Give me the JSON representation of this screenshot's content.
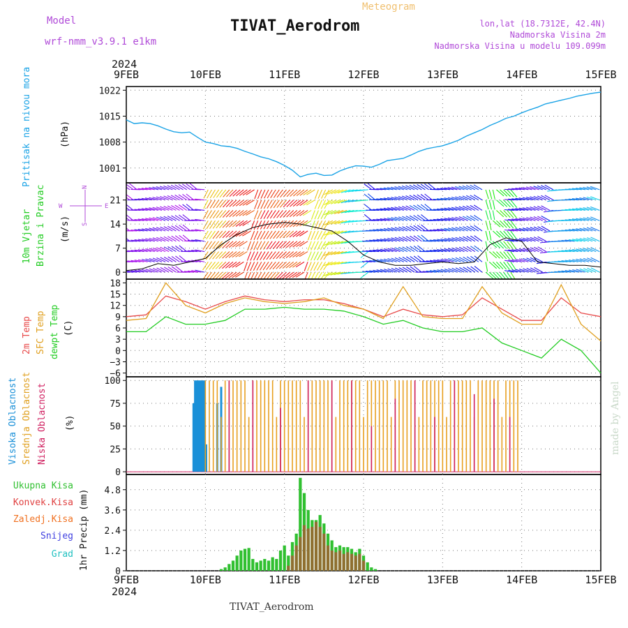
{
  "header": {
    "model_label": "Model",
    "model_name": "wrf-nmm_v3.9.1 e1km",
    "title": "TIVAT_Aerodrom",
    "meteogram_label": "Meteogram",
    "lonlat": "lon,lat (18.7312E, 42.4N)",
    "elevation": "Nadmorska Visina 2m",
    "model_elevation": "Nadmorska Visina u modelu 109.099m",
    "bottom_title": "TIVAT_Aerodrom",
    "watermark": "made by Angel"
  },
  "colors": {
    "pressure": "#1aa3e6",
    "temp2m": "#e84a4a",
    "sfc_temp": "#e0a020",
    "dewpt": "#22cc22",
    "title_purple": "#b04ad8",
    "meteogram_orange": "#f0c070",
    "cloud_high": "#1a90d8",
    "cloud_mid": "#e8a020",
    "cloud_low": "#d02060",
    "rain_total": "#30c030",
    "rain_conv": "#e04040",
    "rain_strat": "#f07020",
    "snow": "#4040e0",
    "hail": "#20c0c0"
  },
  "chart_data": {
    "x_axis": {
      "year": "2024",
      "ticks": [
        "9FEB",
        "10FEB",
        "11FEB",
        "12FEB",
        "13FEB",
        "14FEB",
        "15FEB"
      ],
      "range_days": [
        0,
        6
      ]
    },
    "panels": [
      {
        "id": "pressure",
        "type": "line",
        "ylabel_side": "Pritisak na nivou mora",
        "ylabel_unit": "(hPa)",
        "yticks": [
          "1001",
          "1008",
          "1015",
          "1022"
        ],
        "ylim": [
          997,
          1023
        ],
        "series": {
          "x": [
            0,
            0.1,
            0.2,
            0.3,
            0.4,
            0.5,
            0.6,
            0.7,
            0.8,
            0.9,
            1.0,
            1.1,
            1.2,
            1.3,
            1.4,
            1.5,
            1.6,
            1.7,
            1.8,
            1.9,
            2.0,
            2.1,
            2.2,
            2.3,
            2.4,
            2.5,
            2.6,
            2.7,
            2.8,
            2.9,
            3.0,
            3.1,
            3.2,
            3.3,
            3.4,
            3.5,
            3.6,
            3.7,
            3.8,
            3.9,
            4.0,
            4.1,
            4.2,
            4.3,
            4.4,
            4.5,
            4.6,
            4.7,
            4.8,
            4.9,
            5.0,
            5.1,
            5.2,
            5.3,
            5.4,
            5.5,
            5.6,
            5.7,
            5.8,
            5.9,
            6.0
          ],
          "values": [
            1014,
            1013,
            1013.2,
            1013,
            1012.4,
            1011.5,
            1010.8,
            1010.5,
            1010.7,
            1009.3,
            1008,
            1007.6,
            1007,
            1006.8,
            1006.3,
            1005.5,
            1004.8,
            1004,
            1003.5,
            1002.7,
            1001.7,
            1000.4,
            998.6,
            999.3,
            999.6,
            999,
            999.1,
            1000.2,
            1001,
            1001.6,
            1001.5,
            1001.2,
            1002,
            1003,
            1003.3,
            1003.6,
            1004.5,
            1005.5,
            1006.2,
            1006.6,
            1007,
            1007.7,
            1008.5,
            1009.6,
            1010.5,
            1011.4,
            1012.5,
            1013.4,
            1014.4,
            1015,
            1015.9,
            1016.7,
            1017.4,
            1018.3,
            1018.8,
            1019.3,
            1019.8,
            1020.4,
            1020.8,
            1021.2,
            1021.5
          ]
        }
      },
      {
        "id": "wind",
        "type": "line",
        "ylabel_side_1": "10m Vjetar",
        "ylabel_side_2": "Brzina i Pravac",
        "ylabel_unit": "(m/s)",
        "compass": [
          "N",
          "W",
          "E",
          "S"
        ],
        "yticks": [
          "0",
          "7",
          "14",
          "21"
        ],
        "ylim": [
          -2,
          26
        ],
        "series": {
          "x": [
            0,
            0.2,
            0.4,
            0.6,
            0.8,
            1.0,
            1.2,
            1.4,
            1.6,
            1.8,
            2.0,
            2.2,
            2.4,
            2.6,
            2.8,
            3.0,
            3.2,
            3.4,
            3.6,
            3.8,
            4.0,
            4.2,
            4.4,
            4.6,
            4.8,
            5.0,
            5.2,
            5.4,
            5.6,
            5.8,
            6.0
          ],
          "values": [
            0.5,
            1,
            2.5,
            2,
            3,
            4,
            8,
            11,
            13,
            14,
            14.5,
            14,
            13,
            12,
            9,
            5,
            3,
            2,
            2,
            2.5,
            3,
            2.5,
            3,
            8,
            10,
            9,
            3,
            2.5,
            2,
            2,
            1.5
          ]
        }
      },
      {
        "id": "temperature",
        "type": "line",
        "ylabel_side_1": "2m Temp",
        "ylabel_side_2": "SFC Temp",
        "ylabel_side_3": "dewpt Temp",
        "ylabel_unit": "(C)",
        "yticks": [
          "−6",
          "−3",
          "0",
          "3",
          "6",
          "9",
          "12",
          "15",
          "18"
        ],
        "ylim": [
          -7,
          19
        ],
        "series": [
          {
            "name": "2m Temp",
            "x": [
              0,
              0.25,
              0.5,
              0.75,
              1.0,
              1.25,
              1.5,
              1.75,
              2.0,
              2.25,
              2.5,
              2.75,
              3.0,
              3.25,
              3.5,
              3.75,
              4.0,
              4.25,
              4.5,
              4.75,
              5.0,
              5.25,
              5.5,
              5.75,
              6.0
            ],
            "values": [
              9,
              9.5,
              14.5,
              13,
              11,
              13,
              14.5,
              13.5,
              13,
              13.5,
              13.5,
              12.5,
              11,
              9,
              11,
              9.5,
              9,
              9.5,
              14,
              11,
              8,
              8,
              14,
              10,
              9
            ]
          },
          {
            "name": "SFC Temp",
            "x": [
              0,
              0.25,
              0.5,
              0.75,
              1.0,
              1.25,
              1.5,
              1.75,
              2.0,
              2.25,
              2.5,
              2.75,
              3.0,
              3.25,
              3.5,
              3.75,
              4.0,
              4.25,
              4.5,
              4.75,
              5.0,
              5.25,
              5.5,
              5.75,
              6.0
            ],
            "values": [
              8,
              8.5,
              18,
              12,
              10,
              12.5,
              14,
              13,
              12.5,
              13,
              14,
              12,
              11,
              8.5,
              17,
              9,
              8.5,
              8.5,
              17,
              10,
              7,
              7,
              17.5,
              7,
              2.5
            ]
          },
          {
            "name": "dewpt Temp",
            "x": [
              0,
              0.25,
              0.5,
              0.75,
              1.0,
              1.25,
              1.5,
              1.75,
              2.0,
              2.25,
              2.5,
              2.75,
              3.0,
              3.25,
              3.5,
              3.75,
              4.0,
              4.25,
              4.5,
              4.75,
              5.0,
              5.25,
              5.5,
              5.75,
              6.0
            ],
            "values": [
              5,
              5,
              9,
              7,
              7,
              8,
              11,
              11,
              11.5,
              11,
              11,
              10.5,
              9,
              7,
              8,
              6,
              5,
              5,
              6,
              2,
              0,
              -2,
              3,
              0,
              -6
            ]
          }
        ]
      },
      {
        "id": "clouds",
        "type": "bar",
        "ylabel_side_1": "Visoka Oblacnost",
        "ylabel_side_2": "Srednja Oblacnost",
        "ylabel_side_3": "Niska Oblacnost",
        "ylabel_unit": "(%)",
        "yticks": [
          "0",
          "25",
          "50",
          "75",
          "100"
        ],
        "ylim": [
          -3,
          104
        ],
        "series": {
          "high_x": [
            0.85,
            0.87,
            0.89,
            0.91,
            0.93,
            0.95,
            0.97,
            0.99,
            1.01,
            1.15,
            1.2
          ],
          "high_values": [
            75,
            100,
            100,
            100,
            100,
            100,
            100,
            100,
            30,
            75,
            93
          ],
          "mid_x_range": [
            1.0,
            4.95
          ],
          "low_x": [
            1.3,
            1.6,
            1.95,
            2.3,
            2.6,
            2.85,
            3.1,
            3.4,
            3.65,
            3.9,
            4.15,
            4.4,
            4.65,
            4.85
          ],
          "low_values": [
            100,
            100,
            70,
            100,
            100,
            100,
            50,
            80,
            100,
            60,
            100,
            85,
            80,
            60
          ]
        }
      },
      {
        "id": "precip",
        "type": "bar",
        "ylabel_unit": "1hr Precip (mm)",
        "legend": [
          "Ukupna Kisa",
          "Konvek.Kisa",
          "Zaledj.Kisa",
          "Snijeg",
          "Grad"
        ],
        "yticks": [
          "0",
          "1.2",
          "2.4",
          "3.6",
          "4.8"
        ],
        "ylim": [
          0,
          5.7
        ],
        "series": {
          "total_x": [
            1.2,
            1.25,
            1.3,
            1.35,
            1.4,
            1.45,
            1.5,
            1.55,
            1.6,
            1.65,
            1.7,
            1.75,
            1.8,
            1.85,
            1.9,
            1.95,
            2.0,
            2.05,
            2.1,
            2.15,
            2.2,
            2.25,
            2.3,
            2.35,
            2.4,
            2.45,
            2.5,
            2.55,
            2.6,
            2.65,
            2.7,
            2.75,
            2.8,
            2.85,
            2.9,
            2.95,
            3.0,
            3.05,
            3.1,
            3.15
          ],
          "total_values": [
            0.1,
            0.2,
            0.4,
            0.6,
            0.9,
            1.2,
            1.3,
            1.35,
            0.7,
            0.5,
            0.6,
            0.7,
            0.6,
            0.8,
            0.7,
            1.2,
            1.5,
            0.9,
            1.7,
            2.2,
            5.5,
            4.6,
            3.6,
            3.0,
            3.0,
            3.3,
            2.8,
            2.2,
            1.8,
            1.4,
            1.5,
            1.4,
            1.4,
            1.3,
            1.1,
            1.3,
            0.9,
            0.5,
            0.2,
            0.1
          ],
          "conv_x": [
            2.05,
            2.1,
            2.15,
            2.2,
            2.25,
            2.3,
            2.35,
            2.4,
            2.45,
            2.5,
            2.55,
            2.6,
            2.65,
            2.7,
            2.75,
            2.8,
            2.85,
            2.9,
            2.95,
            3.0
          ],
          "conv_values": [
            0.3,
            0.9,
            1.5,
            2.0,
            2.7,
            2.5,
            2.6,
            2.9,
            2.6,
            2.2,
            1.5,
            1.2,
            1.1,
            1.2,
            1.0,
            1.1,
            1.0,
            0.9,
            1.0,
            0.6
          ]
        }
      }
    ]
  }
}
